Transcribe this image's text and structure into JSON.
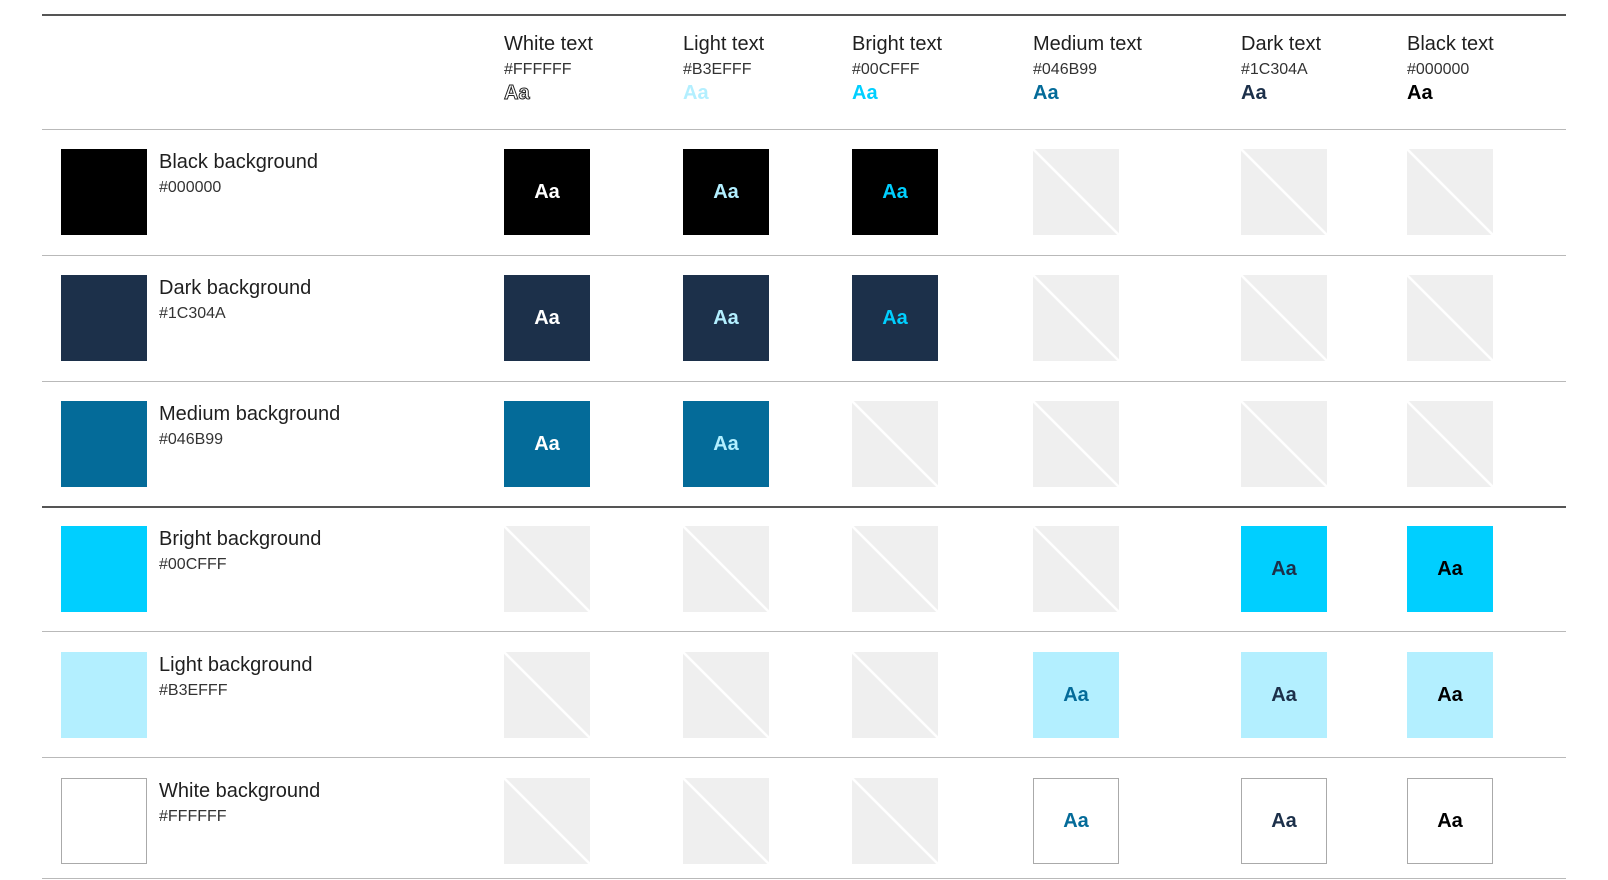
{
  "columns": [
    {
      "id": "white",
      "title": "White text",
      "hex": "#FFFFFF",
      "sample": "Aa",
      "color": "#FFFFFF"
    },
    {
      "id": "light",
      "title": "Light text",
      "hex": "#B3EFFF",
      "sample": "Aa",
      "color": "#B3EFFF"
    },
    {
      "id": "bright",
      "title": "Bright text",
      "hex": "#00CFFF",
      "sample": "Aa",
      "color": "#00CFFF"
    },
    {
      "id": "medium",
      "title": "Medium text",
      "hex": "#046B99",
      "sample": "Aa",
      "color": "#046B99"
    },
    {
      "id": "dark",
      "title": "Dark text",
      "hex": "#1C304A",
      "sample": "Aa",
      "color": "#1C304A"
    },
    {
      "id": "black",
      "title": "Black text",
      "hex": "#000000",
      "sample": "Aa",
      "color": "#000000"
    }
  ],
  "rows": [
    {
      "id": "black",
      "title": "Black background",
      "hex": "#000000",
      "color": "#000000",
      "cells": [
        "Aa",
        "Aa",
        "Aa",
        "",
        "",
        ""
      ]
    },
    {
      "id": "dark",
      "title": "Dark background",
      "hex": "#1C304A",
      "color": "#1C304A",
      "cells": [
        "Aa",
        "Aa",
        "Aa",
        "",
        "",
        ""
      ]
    },
    {
      "id": "medium",
      "title": "Medium background",
      "hex": "#046B99",
      "color": "#046B99",
      "cells": [
        "Aa",
        "Aa",
        "",
        "",
        "",
        ""
      ]
    },
    {
      "id": "bright",
      "title": "Bright background",
      "hex": "#00CFFF",
      "color": "#00CFFF",
      "cells": [
        "",
        "",
        "",
        "",
        "Aa",
        "Aa"
      ]
    },
    {
      "id": "light",
      "title": "Light background",
      "hex": "#B3EFFF",
      "color": "#B3EFFF",
      "cells": [
        "",
        "",
        "",
        "Aa",
        "Aa",
        "Aa"
      ]
    },
    {
      "id": "white",
      "title": "White background",
      "hex": "#FFFFFF",
      "color": "#FFFFFF",
      "cells": [
        "",
        "",
        "",
        "Aa",
        "Aa",
        "Aa"
      ]
    }
  ],
  "colors": {
    "not_allowed_fill": "#EFEFEF",
    "white_swatch_border": "#AAAAAA",
    "white_text_header_outline": "#222222"
  }
}
